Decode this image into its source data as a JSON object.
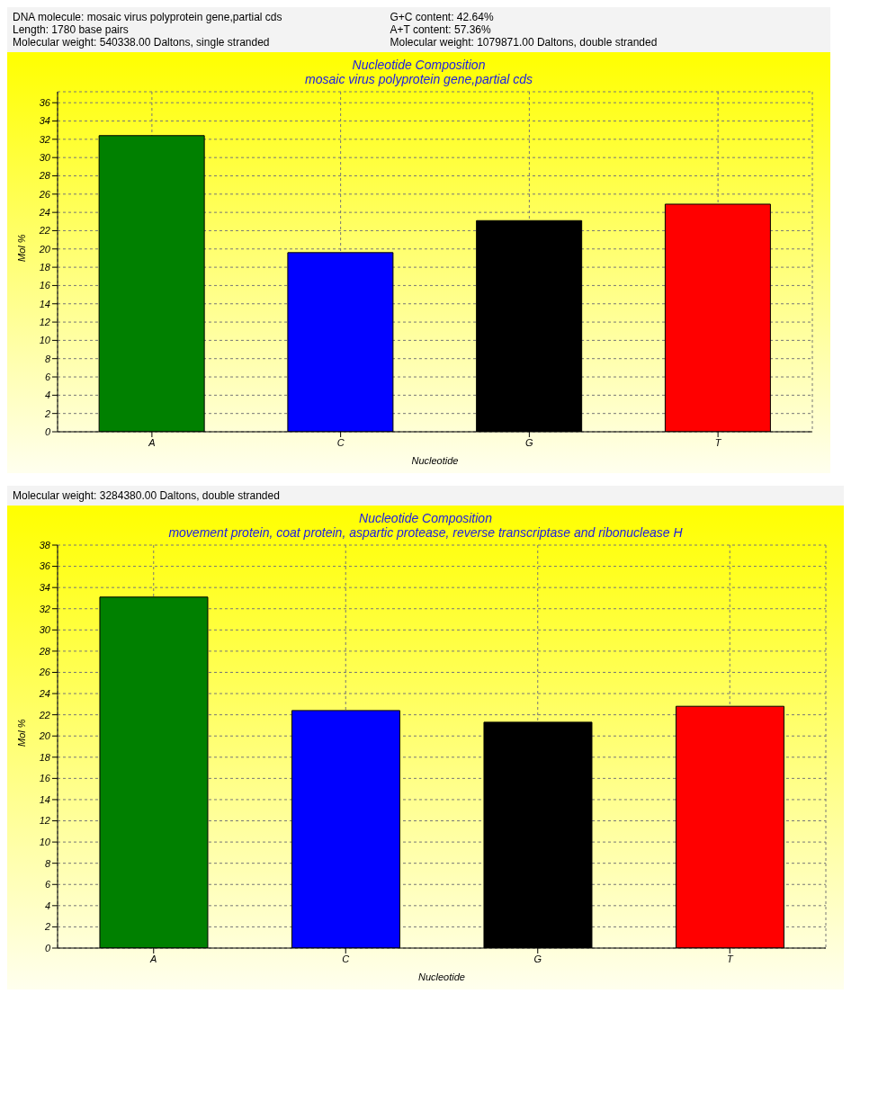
{
  "chart_data": [
    {
      "type": "bar",
      "title": "Nucleotide Composition",
      "subtitle": "mosaic virus polyprotein gene,partial cds",
      "xlabel": "Nucleotide",
      "ylabel": "Mol %",
      "categories": [
        "A",
        "C",
        "G",
        "T"
      ],
      "values": [
        32.4,
        19.6,
        23.1,
        24.9
      ],
      "colors": [
        "#008000",
        "#0000ff",
        "#000000",
        "#ff0000"
      ],
      "ylim": [
        0,
        37.2
      ],
      "yticks": [
        0,
        2,
        4,
        6,
        8,
        10,
        12,
        14,
        16,
        18,
        20,
        22,
        24,
        26,
        28,
        30,
        32,
        34,
        36
      ],
      "grid": true,
      "annotations": [
        "DNA molecule: mosaic virus polyprotein gene,partial cds",
        "Length: 1780 base pairs",
        "Molecular weight: 540338.00 Daltons, single stranded",
        "G+C content: 42.64%",
        "A+T content: 57.36%",
        "Molecular weight: 1079871.00 Daltons, double stranded"
      ]
    },
    {
      "type": "bar",
      "title": "Nucleotide Composition",
      "subtitle": "movement protein, coat protein, aspartic protease, reverse transcriptase and ribonuclease H",
      "xlabel": "Nucleotide",
      "ylabel": "Mol %",
      "categories": [
        "A",
        "C",
        "G",
        "T"
      ],
      "values": [
        33.1,
        22.4,
        21.3,
        22.8
      ],
      "colors": [
        "#008000",
        "#0000ff",
        "#000000",
        "#ff0000"
      ],
      "ylim": [
        0,
        38
      ],
      "yticks": [
        0,
        2,
        4,
        6,
        8,
        10,
        12,
        14,
        16,
        18,
        20,
        22,
        24,
        26,
        28,
        30,
        32,
        34,
        36,
        38
      ],
      "grid": true,
      "annotations": [
        "Molecular weight: 3284380.00 Daltons, double stranded"
      ]
    }
  ]
}
